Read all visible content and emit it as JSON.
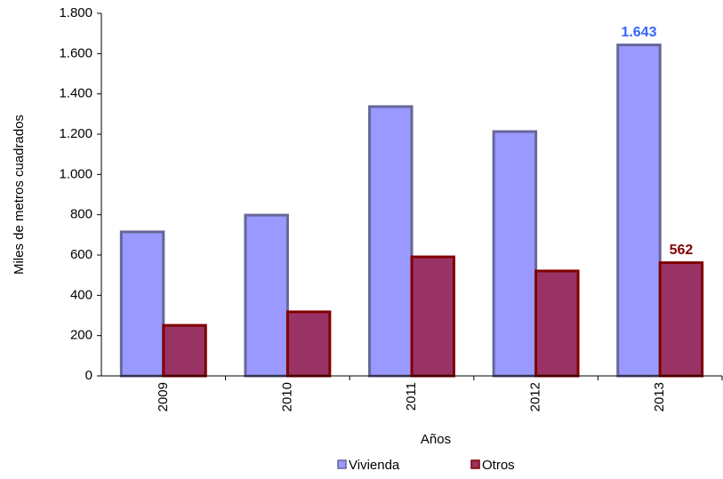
{
  "chart_data": {
    "type": "bar",
    "y_label": "Miles de metros cuadrados",
    "x_label": "Años",
    "categories": [
      "2009",
      "2010",
      "2011",
      "2012",
      "2013"
    ],
    "series": [
      {
        "name": "Vivienda",
        "color": "#9999ff",
        "stroke": "#666699",
        "label_color": "#3366ff",
        "values": [
          715,
          798,
          1337,
          1213,
          1643
        ],
        "value_labels": [
          null,
          null,
          null,
          null,
          "1.643"
        ]
      },
      {
        "name": "Otros",
        "color": "#993366",
        "stroke": "#800000",
        "label_color": "#800000",
        "values": [
          251,
          318,
          591,
          521,
          562
        ],
        "value_labels": [
          null,
          null,
          null,
          null,
          "562"
        ]
      }
    ],
    "ylim": [
      0,
      1800
    ],
    "yticks": [
      0,
      200,
      400,
      600,
      800,
      {
        "value": 1000,
        "label": "1.000"
      },
      {
        "value": 1200,
        "label": "1.200"
      },
      {
        "value": 1400,
        "label": "1.400"
      },
      {
        "value": 1600,
        "label": "1.600"
      },
      {
        "value": 1800,
        "label": "1.800"
      }
    ],
    "grid": false,
    "legend": "bottom"
  }
}
